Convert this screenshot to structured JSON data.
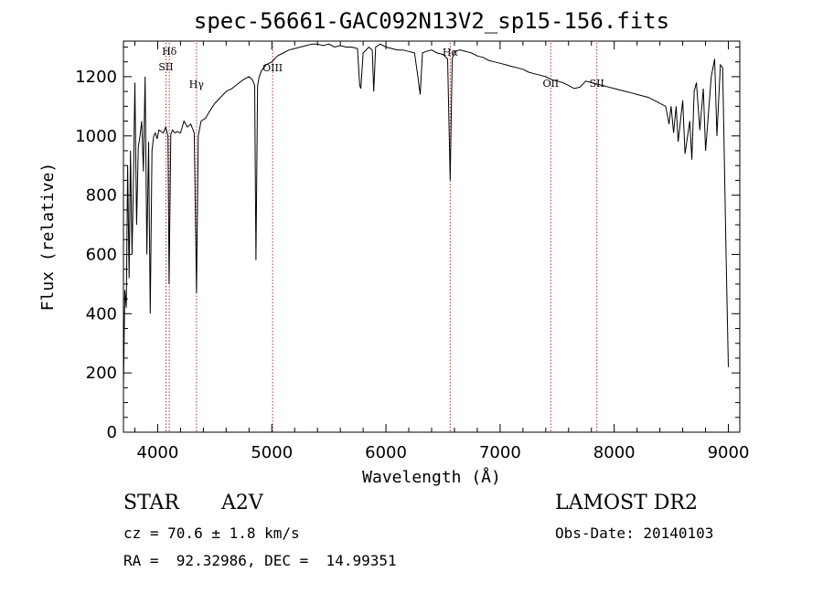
{
  "chart_data": {
    "type": "line",
    "title": "spec-56661-GAC092N13V2_sp15-156.fits",
    "xlabel": "Wavelength (Å)",
    "ylabel": "Flux (relative)",
    "xlim": [
      3700,
      9100
    ],
    "ylim": [
      0,
      1320
    ],
    "x_ticks": [
      4000,
      5000,
      6000,
      7000,
      8000,
      9000
    ],
    "y_ticks": [
      0,
      200,
      400,
      600,
      800,
      1000,
      1200
    ],
    "grid": false,
    "line_color": "#000000",
    "marker_color": "#b03030",
    "series": [
      {
        "x": [
          3700,
          3712,
          3725,
          3737,
          3750,
          3762,
          3775,
          3790,
          3800,
          3815,
          3830,
          3845,
          3860,
          3875,
          3890,
          3905,
          3920,
          3935,
          3950,
          3965,
          3980,
          3995,
          4010,
          4030,
          4050,
          4070,
          4090,
          4100,
          4115,
          4130,
          4150,
          4170,
          4200,
          4230,
          4260,
          4290,
          4320,
          4340,
          4355,
          4380,
          4400,
          4420,
          4450,
          4500,
          4550,
          4600,
          4650,
          4700,
          4750,
          4800,
          4830,
          4850,
          4861,
          4875,
          4890,
          4910,
          4950,
          5000,
          5050,
          5100,
          5150,
          5200,
          5250,
          5300,
          5350,
          5400,
          5450,
          5500,
          5550,
          5600,
          5650,
          5700,
          5750,
          5770,
          5780,
          5800,
          5850,
          5880,
          5893,
          5910,
          5950,
          6000,
          6050,
          6100,
          6150,
          6200,
          6250,
          6280,
          6300,
          6320,
          6350,
          6400,
          6450,
          6500,
          6540,
          6563,
          6580,
          6600,
          6650,
          6700,
          6750,
          6800,
          6850,
          6900,
          6950,
          7000,
          7050,
          7100,
          7150,
          7200,
          7250,
          7300,
          7350,
          7400,
          7450,
          7500,
          7550,
          7600,
          7650,
          7700,
          7750,
          7800,
          7850,
          7900,
          7950,
          8000,
          8050,
          8100,
          8150,
          8200,
          8250,
          8300,
          8350,
          8400,
          8450,
          8480,
          8498,
          8520,
          8542,
          8560,
          8600,
          8620,
          8662,
          8680,
          8700,
          8720,
          8750,
          8780,
          8800,
          8850,
          8880,
          8900,
          8930,
          8950,
          8980,
          9000
        ],
        "y": [
          150,
          480,
          420,
          900,
          520,
          950,
          600,
          900,
          1180,
          700,
          960,
          1000,
          1050,
          880,
          1200,
          600,
          980,
          400,
          950,
          1000,
          1010,
          990,
          1020,
          1015,
          1010,
          1030,
          1000,
          500,
          1005,
          1020,
          1010,
          1015,
          1010,
          1050,
          1030,
          1040,
          1010,
          470,
          1000,
          1050,
          1055,
          1060,
          1080,
          1110,
          1130,
          1150,
          1160,
          1175,
          1190,
          1200,
          1190,
          1170,
          580,
          1170,
          1200,
          1220,
          1240,
          1250,
          1270,
          1280,
          1290,
          1295,
          1300,
          1305,
          1310,
          1310,
          1305,
          1310,
          1300,
          1305,
          1300,
          1300,
          1295,
          1170,
          1160,
          1280,
          1300,
          1290,
          1150,
          1300,
          1310,
          1300,
          1295,
          1290,
          1290,
          1285,
          1280,
          1200,
          1140,
          1280,
          1285,
          1290,
          1280,
          1275,
          1260,
          850,
          1260,
          1285,
          1290,
          1285,
          1280,
          1270,
          1265,
          1255,
          1250,
          1245,
          1240,
          1235,
          1230,
          1225,
          1215,
          1210,
          1205,
          1200,
          1190,
          1185,
          1180,
          1170,
          1160,
          1165,
          1185,
          1180,
          1175,
          1170,
          1165,
          1160,
          1155,
          1150,
          1145,
          1140,
          1135,
          1130,
          1120,
          1110,
          1100,
          1040,
          1100,
          1010,
          1100,
          980,
          1120,
          940,
          1050,
          920,
          1150,
          1180,
          1020,
          1160,
          950,
          1200,
          1260,
          1000,
          1240,
          1230,
          600,
          220
        ]
      }
    ],
    "markers": [
      {
        "x": 4072,
        "label": "SII"
      },
      {
        "x": 4102,
        "label": "Hδ"
      },
      {
        "x": 4340,
        "label": "Hγ"
      },
      {
        "x": 5007,
        "label": "OIII"
      },
      {
        "x": 6563,
        "label": "Hα"
      },
      {
        "x": 7444,
        "label": "OII"
      },
      {
        "x": 7848,
        "label": "SII"
      }
    ]
  },
  "info": {
    "class": "STAR",
    "subclass": "A2V",
    "survey": "LAMOST DR2",
    "cz": "cz = 70.6 ± 1.8 km/s",
    "obs_date": "Obs-Date: 20140103",
    "coords": "RA =  92.32986, DEC =  14.99351"
  }
}
